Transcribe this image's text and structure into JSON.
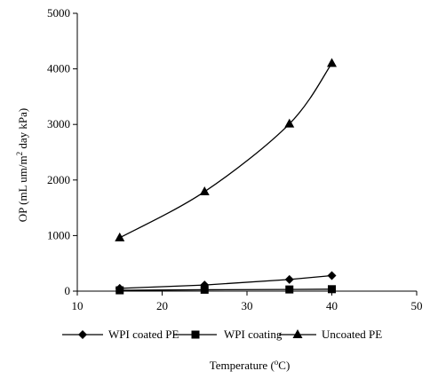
{
  "chart_data": {
    "type": "line",
    "xlabel_parts": [
      "Temperature (",
      "o",
      "C)"
    ],
    "ylabel_parts": [
      "OP (mL um/m",
      "2",
      " day kPa)"
    ],
    "xlim": [
      10,
      50
    ],
    "ylim": [
      0,
      5000
    ],
    "xticks": [
      10,
      20,
      30,
      40,
      50
    ],
    "yticks": [
      0,
      1000,
      2000,
      3000,
      4000,
      5000
    ],
    "grid": false,
    "legend_position": "bottom",
    "series": [
      {
        "name": "WPI coated PE",
        "marker": "diamond",
        "x": [
          15,
          25,
          35,
          40
        ],
        "y": [
          50,
          110,
          210,
          280
        ]
      },
      {
        "name": "WPI coating",
        "marker": "square",
        "x": [
          15,
          25,
          35,
          40
        ],
        "y": [
          15,
          25,
          30,
          35
        ]
      },
      {
        "name": "Uncoated PE",
        "marker": "triangle",
        "x": [
          15,
          25,
          35,
          40
        ],
        "y": [
          960,
          1790,
          3010,
          4100
        ]
      }
    ]
  }
}
